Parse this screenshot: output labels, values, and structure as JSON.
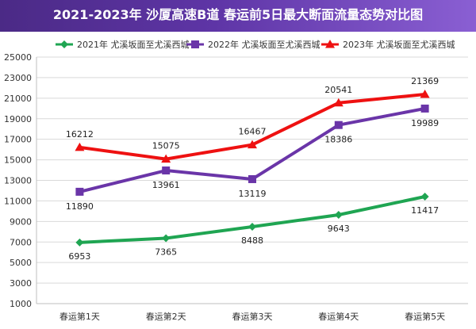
{
  "chart_data": {
    "type": "line",
    "title": "2021-2023年 沙厦高速B道 春运前5日最大断面流量态势对比图",
    "xlabel": "",
    "ylabel": "",
    "categories": [
      "春运第1天",
      "春运第2天",
      "春运第3天",
      "春运第4天",
      "春运第5天"
    ],
    "yticks": [
      1000,
      3000,
      5000,
      7000,
      9000,
      11000,
      13000,
      15000,
      17000,
      19000,
      21000,
      23000,
      25000
    ],
    "ylim": [
      1000,
      25000
    ],
    "grid": true,
    "legend_position": "top",
    "series": [
      {
        "name": "2021年 尤溪坂面至尤溪西城",
        "color": "#1fa552",
        "marker": "diamond",
        "values": [
          6953,
          7365,
          8488,
          9643,
          11417
        ]
      },
      {
        "name": "2022年 尤溪坂面至尤溪西城",
        "color": "#6a35a8",
        "marker": "square",
        "values": [
          11890,
          13961,
          13119,
          18386,
          19989
        ]
      },
      {
        "name": "2023年 尤溪坂面至尤溪西城",
        "color": "#ee1111",
        "marker": "triangle",
        "values": [
          16212,
          15075,
          16467,
          20541,
          21369
        ]
      }
    ]
  }
}
